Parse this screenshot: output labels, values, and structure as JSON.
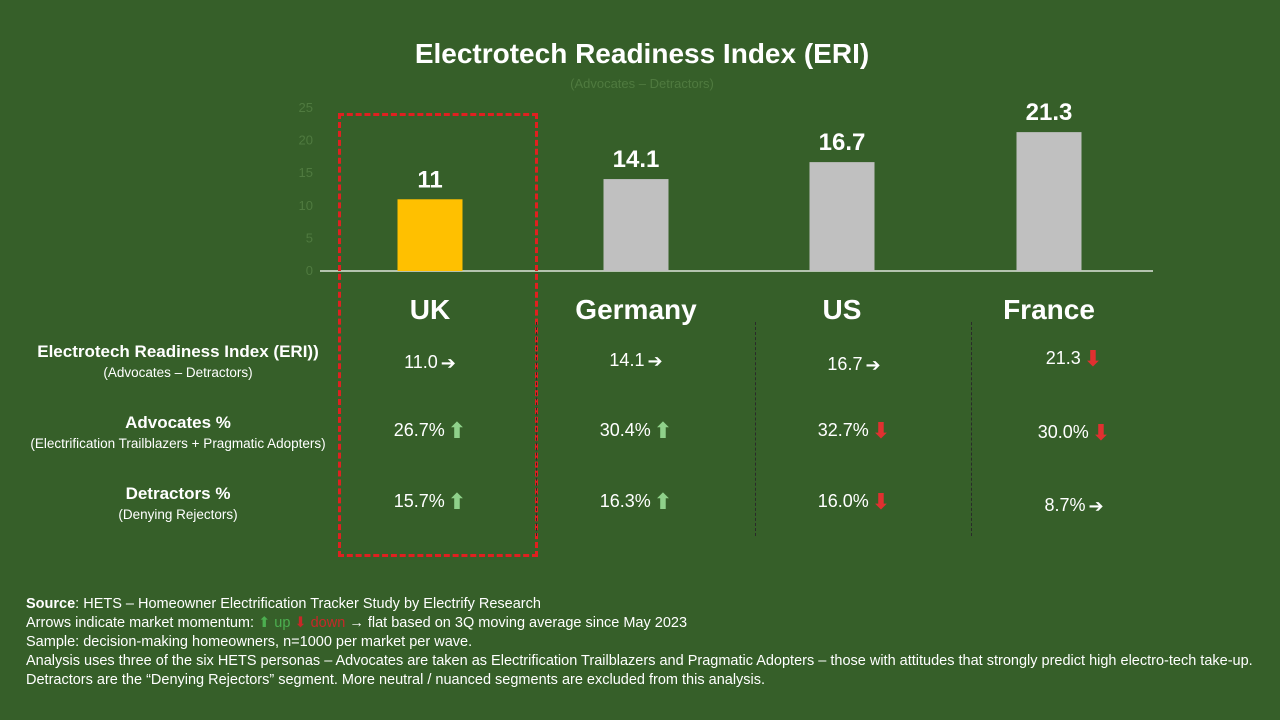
{
  "chart_data": {
    "type": "bar",
    "title": "Electrotech Readiness Index (ERI)",
    "subtitle": "(Advocates – Detractors)",
    "categories": [
      "UK",
      "Germany",
      "US",
      "France"
    ],
    "values": [
      11,
      14.1,
      16.7,
      21.3
    ],
    "value_labels": [
      "11",
      "14.1",
      "16.7",
      "21.3"
    ],
    "highlight_category": "UK",
    "colors": {
      "highlight": "#ffc000",
      "default": "#c0c0c0",
      "axis": "#ffffff",
      "tick": "#4f7a3f"
    },
    "ylim": [
      0,
      25
    ],
    "yticks": [
      "0",
      "5",
      "10",
      "15",
      "20",
      "25"
    ],
    "xlabel": "",
    "ylabel": "",
    "grid": false
  },
  "table": {
    "rows": [
      {
        "label": "Electrotech Readiness Index (ERI))",
        "sublabel": "(Advocates – Detractors)",
        "cells": [
          {
            "value": "11.0",
            "arrow": "right"
          },
          {
            "value": "14.1",
            "arrow": "right"
          },
          {
            "value": "16.7",
            "arrow": "right"
          },
          {
            "value": "21.3",
            "arrow": "down"
          }
        ]
      },
      {
        "label": "Advocates %",
        "sublabel": "(Electrification Trailblazers + Pragmatic Adopters)",
        "cells": [
          {
            "value": "26.7%",
            "arrow": "up"
          },
          {
            "value": "30.4%",
            "arrow": "up"
          },
          {
            "value": "32.7%",
            "arrow": "down"
          },
          {
            "value": "30.0%",
            "arrow": "down"
          }
        ]
      },
      {
        "label": "Detractors %",
        "sublabel": "(Denying Rejectors)",
        "cells": [
          {
            "value": "15.7%",
            "arrow": "up"
          },
          {
            "value": "16.3%",
            "arrow": "up"
          },
          {
            "value": "16.0%",
            "arrow": "down"
          },
          {
            "value": "8.7%",
            "arrow": "right"
          }
        ]
      }
    ]
  },
  "footnote": {
    "source_label": "Source",
    "source_text": ": HETS – Homeowner Electrification Tracker Study by Electrify Research",
    "arrows_prefix": "Arrows indicate market momentum: ",
    "legend_up": " up ",
    "legend_down": " down ",
    "legend_flat": " flat based on 3Q moving average since May 2023",
    "sample": "Sample: decision-making homeowners, n=1000 per market per wave.",
    "analysis": "Analysis uses three of the six HETS personas – Advocates are taken as Electrification Trailblazers and Pragmatic Adopters – those with attitudes that strongly predict high electro-tech take-up. Detractors are the “Denying Rejectors” segment.  More neutral / nuanced segments are excluded from this analysis."
  },
  "arrow_colors": {
    "up": "#8fd18a",
    "down": "#e03030",
    "right": "#ffffff"
  }
}
